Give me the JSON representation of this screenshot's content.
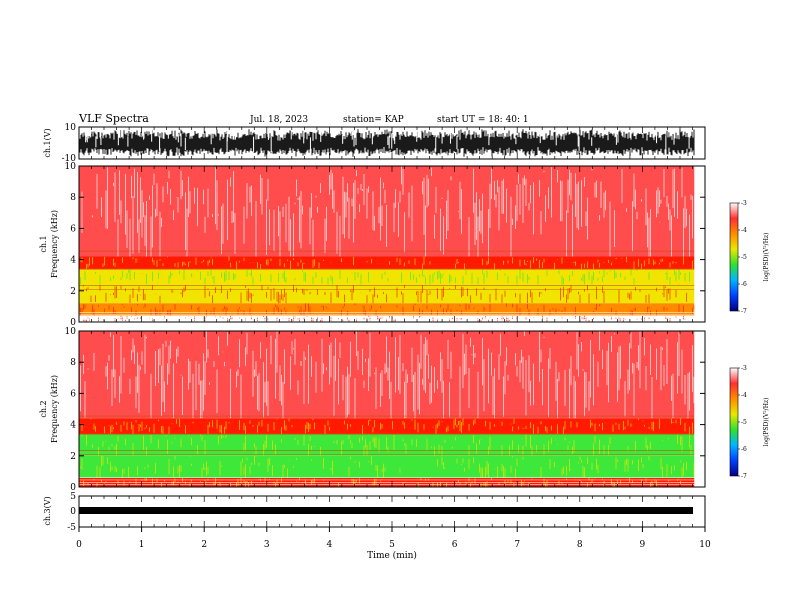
{
  "header": {
    "title": "VLF Spectra",
    "date": "Jul. 18, 2023",
    "station": "station= KAP",
    "start": "start UT = 18: 40: 1"
  },
  "chart_data": [
    {
      "type": "line",
      "name": "ch1-waveform",
      "ylabel": "ch.1(V)",
      "ylim": [
        -10,
        10
      ],
      "yticks": [
        "10",
        "-10"
      ],
      "x_unit": "min",
      "xlim": [
        0,
        10
      ],
      "note_extent": 9.83
    },
    {
      "type": "heatmap",
      "name": "ch1-spectrogram",
      "ylabel": "ch.1",
      "ylabel2": "Frequency (kHz)",
      "ylim": [
        0,
        10
      ],
      "yticks": [
        "0",
        "2",
        "4",
        "6",
        "8",
        "10"
      ],
      "bands_khz": [
        {
          "from": 4.2,
          "to": 10,
          "level": "sparse-red"
        },
        {
          "from": 3.4,
          "to": 4.2,
          "level": "red-yellow"
        },
        {
          "from": 2.4,
          "to": 3.4,
          "level": "yellow-green"
        },
        {
          "from": 1.2,
          "to": 2.4,
          "level": "yellow-red"
        },
        {
          "from": 0.4,
          "to": 1.2,
          "level": "yellow-orange"
        },
        {
          "from": 0,
          "to": 0.4,
          "level": "white-lines"
        }
      ],
      "colorbar": {
        "min": -7,
        "max": -3,
        "ticks": [
          "-3",
          "-4",
          "-5",
          "-6",
          "-7"
        ],
        "label": "log(PSD)(V²/Hz)"
      }
    },
    {
      "type": "heatmap",
      "name": "ch2-spectrogram",
      "ylabel": "ch.2",
      "ylabel2": "Frequency (kHz)",
      "ylim": [
        0,
        10
      ],
      "yticks": [
        "0",
        "2",
        "4",
        "6",
        "8",
        "10"
      ],
      "bands_khz": [
        {
          "from": 4.4,
          "to": 10,
          "level": "sparse-red"
        },
        {
          "from": 3.4,
          "to": 4.4,
          "level": "red-yellow"
        },
        {
          "from": 2.0,
          "to": 3.4,
          "level": "green"
        },
        {
          "from": 0.6,
          "to": 2.0,
          "level": "green-yellow"
        },
        {
          "from": 0,
          "to": 0.6,
          "level": "red-yellow"
        }
      ],
      "colorbar": {
        "min": -7,
        "max": -3,
        "ticks": [
          "-3",
          "-4",
          "-5",
          "-6",
          "-7"
        ],
        "label": "log(PSD)(V²/Hz)"
      }
    },
    {
      "type": "line",
      "name": "ch3-waveform",
      "ylabel": "ch.3(V)",
      "ylim": [
        -5,
        5
      ],
      "yticks": [
        "5",
        "0",
        "-5"
      ],
      "xlim": [
        0,
        10
      ],
      "xticks": [
        "0",
        "1",
        "2",
        "3",
        "4",
        "5",
        "6",
        "7",
        "8",
        "9",
        "10"
      ],
      "xlabel": "Time (min)"
    }
  ],
  "colors": {
    "sparse": "#ff4d4d",
    "red": "#ff1a00",
    "orange": "#ff8a00",
    "yellow": "#f0e400",
    "green": "#3ee83a",
    "line": "#000000"
  }
}
